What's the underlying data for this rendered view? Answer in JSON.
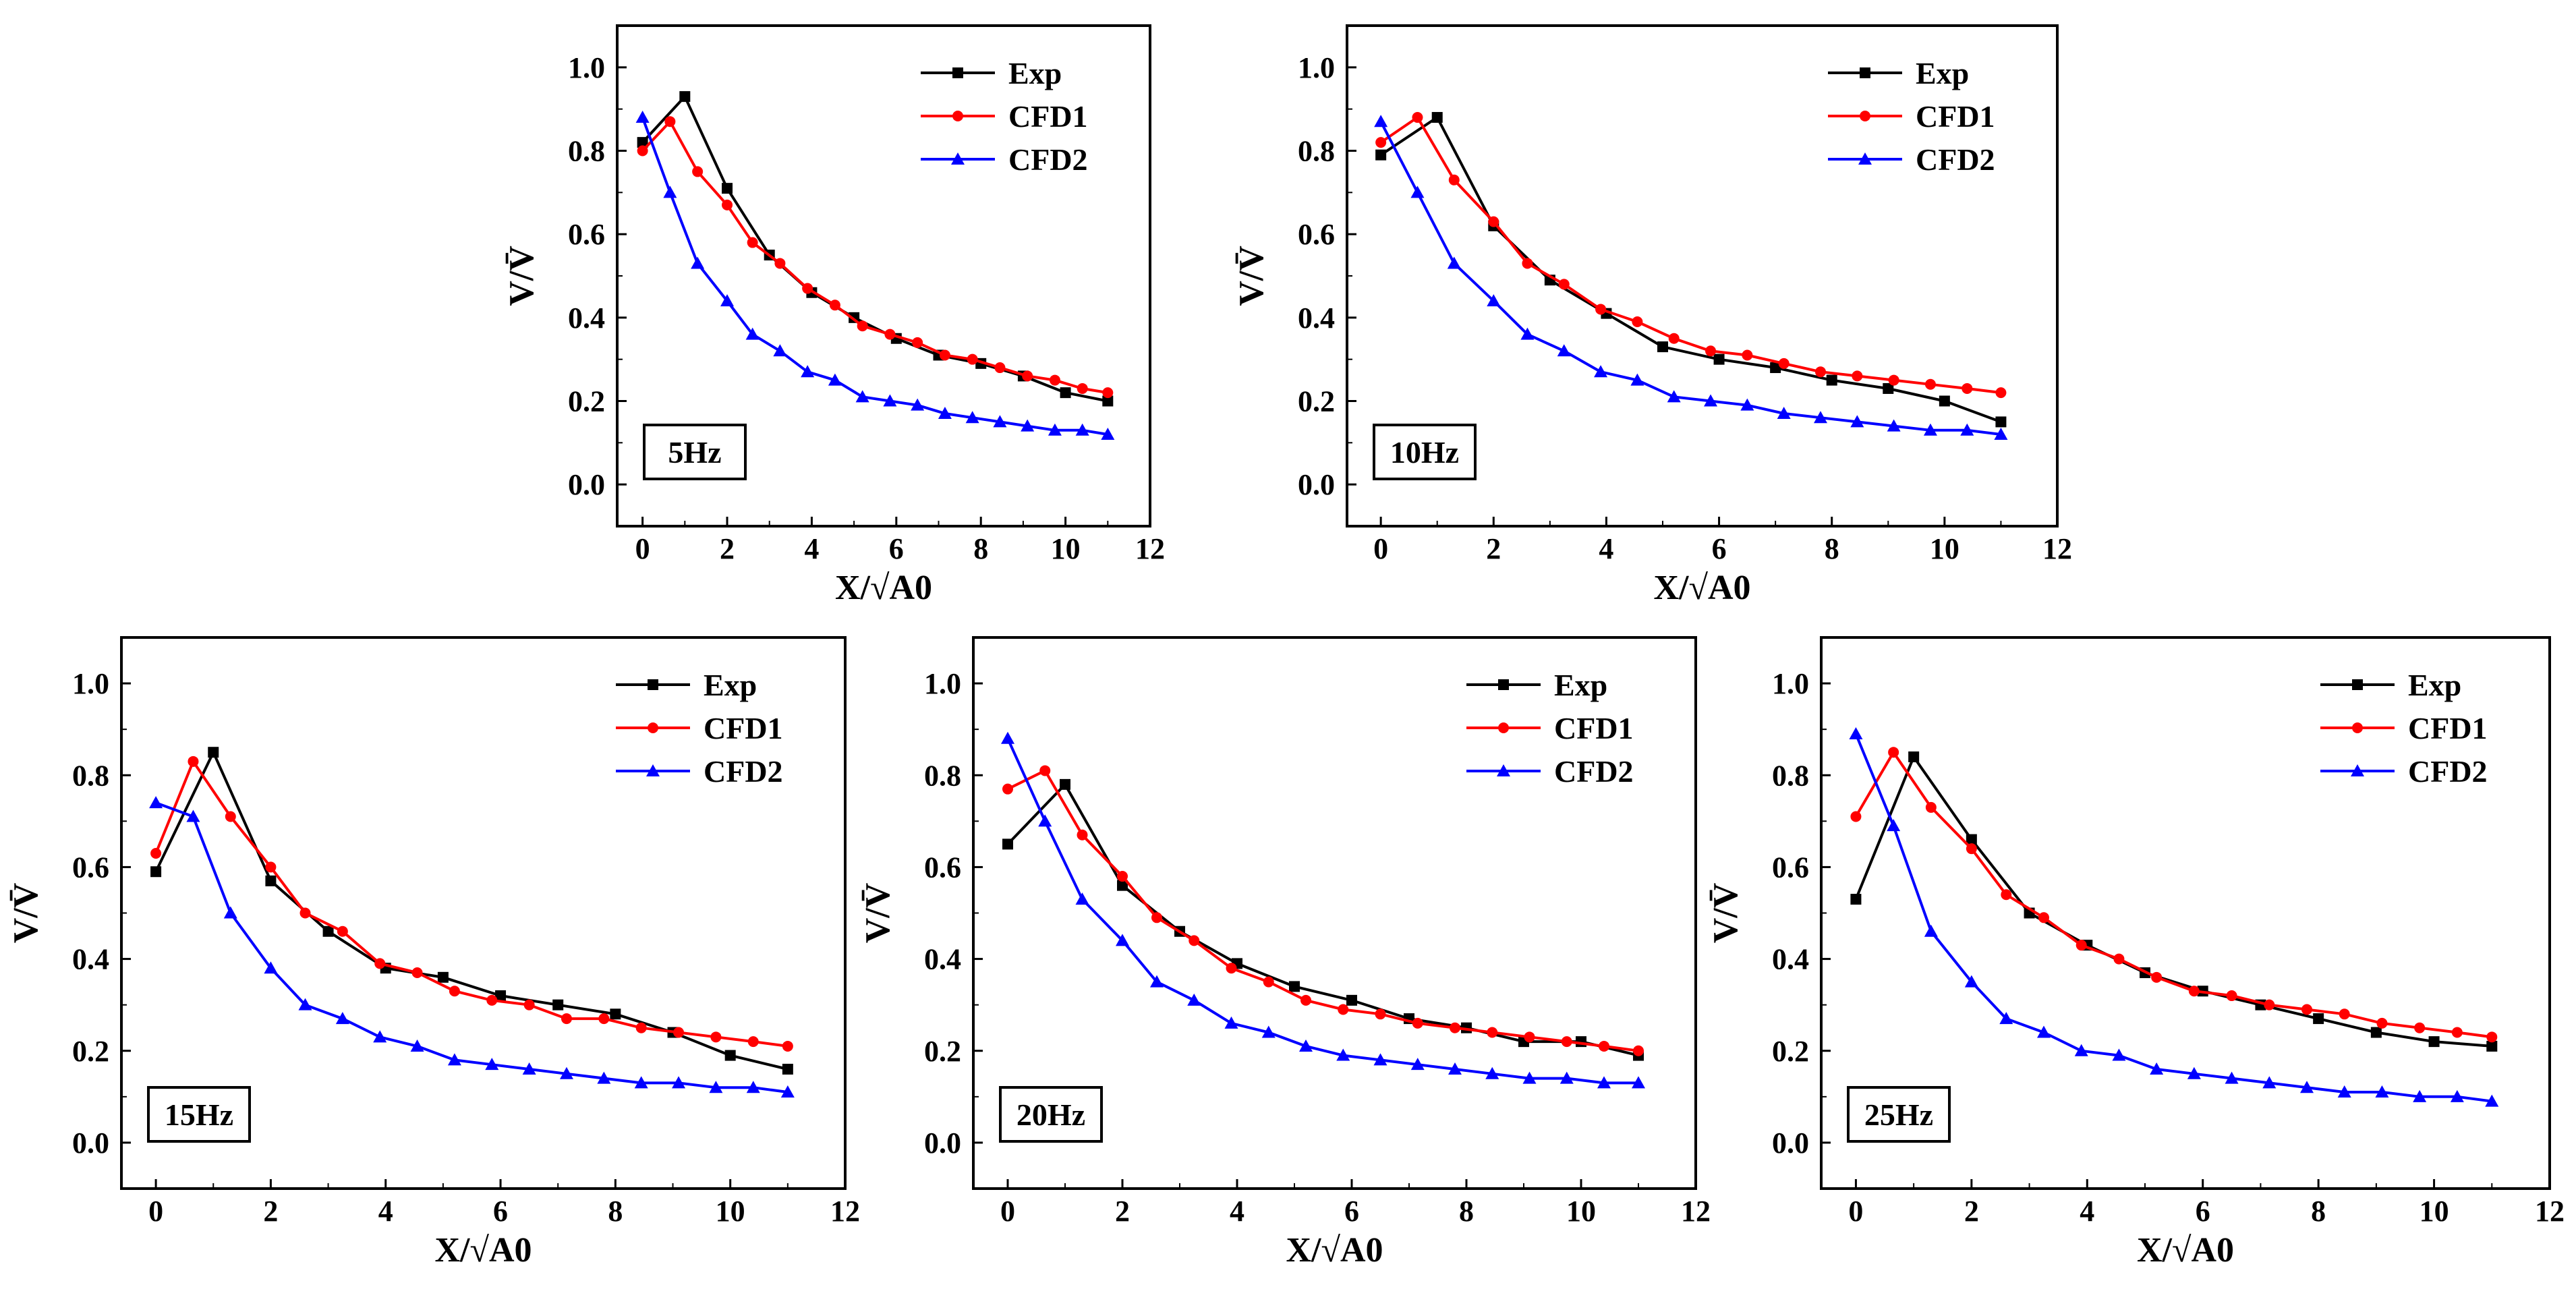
{
  "colors": {
    "Exp": "#000000",
    "CFD1": "#ff0000",
    "CFD2": "#0000ff"
  },
  "axes": {
    "xticks": [
      "0",
      "2",
      "4",
      "6",
      "8",
      "10",
      "12"
    ],
    "yticks": [
      "0.0",
      "0.2",
      "0.4",
      "0.6",
      "0.8",
      "1.0"
    ]
  },
  "chart_data": [
    {
      "type": "line",
      "label": "5Hz",
      "xlabel": "X/√A0",
      "ylabel": "V/V̄",
      "xlim": [
        -0.6,
        12
      ],
      "ylim": [
        -0.1,
        1.1
      ],
      "legend": [
        "Exp",
        "CFD1",
        "CFD2"
      ],
      "series": [
        {
          "name": "Exp",
          "marker": "square",
          "x": [
            0,
            1,
            2,
            3,
            4,
            5,
            6,
            7,
            8,
            9,
            10,
            11
          ],
          "y": [
            0.82,
            0.93,
            0.71,
            0.55,
            0.46,
            0.4,
            0.35,
            0.31,
            0.29,
            0.26,
            0.22,
            0.2
          ]
        },
        {
          "name": "CFD1",
          "marker": "circle",
          "x": [
            0,
            0.65,
            1.3,
            2,
            2.6,
            3.25,
            3.9,
            4.55,
            5.2,
            5.85,
            6.5,
            7.15,
            7.8,
            8.45,
            9.1,
            9.75,
            10.4,
            11
          ],
          "y": [
            0.8,
            0.87,
            0.75,
            0.67,
            0.58,
            0.53,
            0.47,
            0.43,
            0.38,
            0.36,
            0.34,
            0.31,
            0.3,
            0.28,
            0.26,
            0.25,
            0.23,
            0.22
          ]
        },
        {
          "name": "CFD2",
          "marker": "triangle",
          "x": [
            0,
            0.65,
            1.3,
            2,
            2.6,
            3.25,
            3.9,
            4.55,
            5.2,
            5.85,
            6.5,
            7.15,
            7.8,
            8.45,
            9.1,
            9.75,
            10.4,
            11
          ],
          "y": [
            0.88,
            0.7,
            0.53,
            0.44,
            0.36,
            0.32,
            0.27,
            0.25,
            0.21,
            0.2,
            0.19,
            0.17,
            0.16,
            0.15,
            0.14,
            0.13,
            0.13,
            0.12
          ]
        }
      ]
    },
    {
      "type": "line",
      "label": "10Hz",
      "xlabel": "X/√A0",
      "ylabel": "V/V̄",
      "xlim": [
        -0.6,
        12
      ],
      "ylim": [
        -0.1,
        1.1
      ],
      "legend": [
        "Exp",
        "CFD1",
        "CFD2"
      ],
      "series": [
        {
          "name": "Exp",
          "marker": "square",
          "x": [
            0,
            1,
            2,
            3,
            4,
            5,
            6,
            7,
            8,
            9,
            10,
            11
          ],
          "y": [
            0.79,
            0.88,
            0.62,
            0.49,
            0.41,
            0.33,
            0.3,
            0.28,
            0.25,
            0.23,
            0.2,
            0.15
          ]
        },
        {
          "name": "CFD1",
          "marker": "circle",
          "x": [
            0,
            0.65,
            1.3,
            2,
            2.6,
            3.25,
            3.9,
            4.55,
            5.2,
            5.85,
            6.5,
            7.15,
            7.8,
            8.45,
            9.1,
            9.75,
            10.4,
            11
          ],
          "y": [
            0.82,
            0.88,
            0.73,
            0.63,
            0.53,
            0.48,
            0.42,
            0.39,
            0.35,
            0.32,
            0.31,
            0.29,
            0.27,
            0.26,
            0.25,
            0.24,
            0.23,
            0.22
          ]
        },
        {
          "name": "CFD2",
          "marker": "triangle",
          "x": [
            0,
            0.65,
            1.3,
            2,
            2.6,
            3.25,
            3.9,
            4.55,
            5.2,
            5.85,
            6.5,
            7.15,
            7.8,
            8.45,
            9.1,
            9.75,
            10.4,
            11
          ],
          "y": [
            0.87,
            0.7,
            0.53,
            0.44,
            0.36,
            0.32,
            0.27,
            0.25,
            0.21,
            0.2,
            0.19,
            0.17,
            0.16,
            0.15,
            0.14,
            0.13,
            0.13,
            0.12
          ]
        }
      ]
    },
    {
      "type": "line",
      "label": "15Hz",
      "xlabel": "X/√A0",
      "ylabel": "V/V̄",
      "xlim": [
        -0.6,
        12
      ],
      "ylim": [
        -0.1,
        1.1
      ],
      "legend": [
        "Exp",
        "CFD1",
        "CFD2"
      ],
      "series": [
        {
          "name": "Exp",
          "marker": "square",
          "x": [
            0,
            1,
            2,
            3,
            4,
            5,
            6,
            7,
            8,
            9,
            10,
            11
          ],
          "y": [
            0.59,
            0.85,
            0.57,
            0.46,
            0.38,
            0.36,
            0.32,
            0.3,
            0.28,
            0.24,
            0.19,
            0.16
          ]
        },
        {
          "name": "CFD1",
          "marker": "circle",
          "x": [
            0,
            0.65,
            1.3,
            2,
            2.6,
            3.25,
            3.9,
            4.55,
            5.2,
            5.85,
            6.5,
            7.15,
            7.8,
            8.45,
            9.1,
            9.75,
            10.4,
            11
          ],
          "y": [
            0.63,
            0.83,
            0.71,
            0.6,
            0.5,
            0.46,
            0.39,
            0.37,
            0.33,
            0.31,
            0.3,
            0.27,
            0.27,
            0.25,
            0.24,
            0.23,
            0.22,
            0.21
          ]
        },
        {
          "name": "CFD2",
          "marker": "triangle",
          "x": [
            0,
            0.65,
            1.3,
            2,
            2.6,
            3.25,
            3.9,
            4.55,
            5.2,
            5.85,
            6.5,
            7.15,
            7.8,
            8.45,
            9.1,
            9.75,
            10.4,
            11
          ],
          "y": [
            0.74,
            0.71,
            0.5,
            0.38,
            0.3,
            0.27,
            0.23,
            0.21,
            0.18,
            0.17,
            0.16,
            0.15,
            0.14,
            0.13,
            0.13,
            0.12,
            0.12,
            0.11
          ]
        }
      ]
    },
    {
      "type": "line",
      "label": "20Hz",
      "xlabel": "X/√A0",
      "ylabel": "V/V̄",
      "xlim": [
        -0.6,
        12
      ],
      "ylim": [
        -0.1,
        1.1
      ],
      "legend": [
        "Exp",
        "CFD1",
        "CFD2"
      ],
      "series": [
        {
          "name": "Exp",
          "marker": "square",
          "x": [
            0,
            1,
            2,
            3,
            4,
            5,
            6,
            7,
            8,
            9,
            10,
            11
          ],
          "y": [
            0.65,
            0.78,
            0.56,
            0.46,
            0.39,
            0.34,
            0.31,
            0.27,
            0.25,
            0.22,
            0.22,
            0.19
          ]
        },
        {
          "name": "CFD1",
          "marker": "circle",
          "x": [
            0,
            0.65,
            1.3,
            2,
            2.6,
            3.25,
            3.9,
            4.55,
            5.2,
            5.85,
            6.5,
            7.15,
            7.8,
            8.45,
            9.1,
            9.75,
            10.4,
            11
          ],
          "y": [
            0.77,
            0.81,
            0.67,
            0.58,
            0.49,
            0.44,
            0.38,
            0.35,
            0.31,
            0.29,
            0.28,
            0.26,
            0.25,
            0.24,
            0.23,
            0.22,
            0.21,
            0.2
          ]
        },
        {
          "name": "CFD2",
          "marker": "triangle",
          "x": [
            0,
            0.65,
            1.3,
            2,
            2.6,
            3.25,
            3.9,
            4.55,
            5.2,
            5.85,
            6.5,
            7.15,
            7.8,
            8.45,
            9.1,
            9.75,
            10.4,
            11
          ],
          "y": [
            0.88,
            0.7,
            0.53,
            0.44,
            0.35,
            0.31,
            0.26,
            0.24,
            0.21,
            0.19,
            0.18,
            0.17,
            0.16,
            0.15,
            0.14,
            0.14,
            0.13,
            0.13
          ]
        }
      ]
    },
    {
      "type": "line",
      "label": "25Hz",
      "xlabel": "X/√A0",
      "ylabel": "V/V̄",
      "xlim": [
        -0.6,
        12
      ],
      "ylim": [
        -0.1,
        1.1
      ],
      "legend": [
        "Exp",
        "CFD1",
        "CFD2"
      ],
      "series": [
        {
          "name": "Exp",
          "marker": "square",
          "x": [
            0,
            1,
            2,
            3,
            4,
            5,
            6,
            7,
            8,
            9,
            10,
            11
          ],
          "y": [
            0.53,
            0.84,
            0.66,
            0.5,
            0.43,
            0.37,
            0.33,
            0.3,
            0.27,
            0.24,
            0.22,
            0.21
          ]
        },
        {
          "name": "CFD1",
          "marker": "circle",
          "x": [
            0,
            0.65,
            1.3,
            2,
            2.6,
            3.25,
            3.9,
            4.55,
            5.2,
            5.85,
            6.5,
            7.15,
            7.8,
            8.45,
            9.1,
            9.75,
            10.4,
            11
          ],
          "y": [
            0.71,
            0.85,
            0.73,
            0.64,
            0.54,
            0.49,
            0.43,
            0.4,
            0.36,
            0.33,
            0.32,
            0.3,
            0.29,
            0.28,
            0.26,
            0.25,
            0.24,
            0.23
          ]
        },
        {
          "name": "CFD2",
          "marker": "triangle",
          "x": [
            0,
            0.65,
            1.3,
            2,
            2.6,
            3.25,
            3.9,
            4.55,
            5.2,
            5.85,
            6.5,
            7.15,
            7.8,
            8.45,
            9.1,
            9.75,
            10.4,
            11
          ],
          "y": [
            0.89,
            0.69,
            0.46,
            0.35,
            0.27,
            0.24,
            0.2,
            0.19,
            0.16,
            0.15,
            0.14,
            0.13,
            0.12,
            0.11,
            0.11,
            0.1,
            0.1,
            0.09
          ]
        }
      ]
    }
  ]
}
